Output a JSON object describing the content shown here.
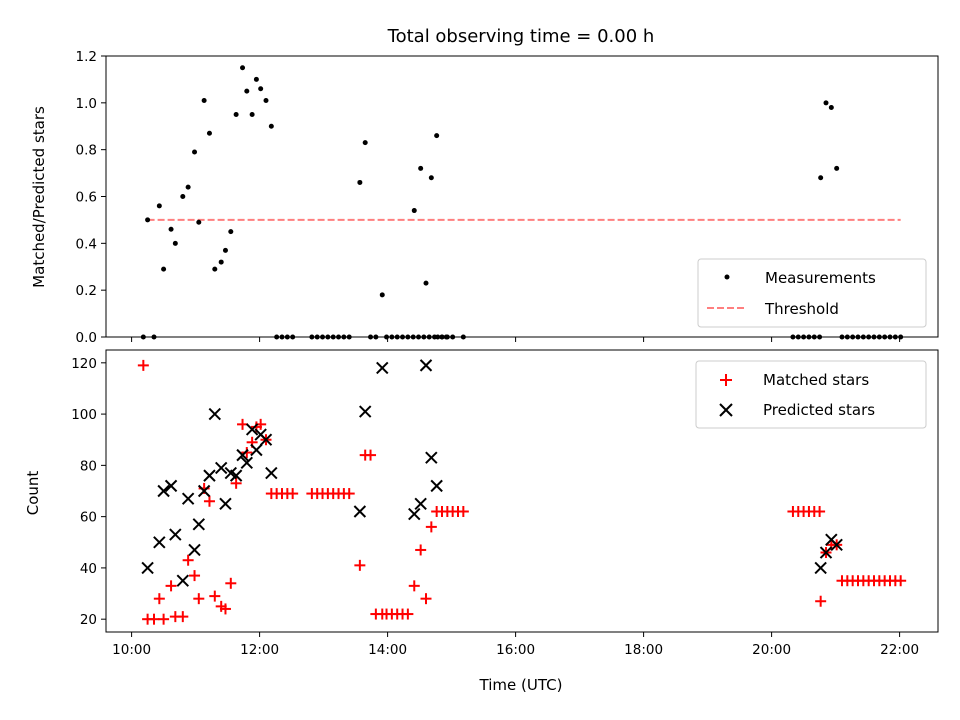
{
  "chart_data": [
    {
      "type": "scatter",
      "title": "Total observing time = 0.00 h",
      "xlabel": "",
      "ylabel": "Matched/Predicted stars",
      "xlim": [
        "09:36",
        "22:36"
      ],
      "ylim": [
        0,
        1.2
      ],
      "yticks": [
        "0.0",
        "0.2",
        "0.4",
        "0.6",
        "0.8",
        "1.0",
        "1.2"
      ],
      "legend_placement": "lower-right",
      "series": [
        {
          "name": "Measurements",
          "marker": "dot",
          "color": "#000000",
          "points": [
            [
              "10:11",
              0.0
            ],
            [
              "10:15",
              0.5
            ],
            [
              "10:21",
              0.0
            ],
            [
              "10:26",
              0.56
            ],
            [
              "10:30",
              0.29
            ],
            [
              "10:37",
              0.46
            ],
            [
              "10:41",
              0.4
            ],
            [
              "10:48",
              0.6
            ],
            [
              "10:53",
              0.64
            ],
            [
              "10:59",
              0.79
            ],
            [
              "11:03",
              0.49
            ],
            [
              "11:08",
              1.01
            ],
            [
              "11:13",
              0.87
            ],
            [
              "11:18",
              0.29
            ],
            [
              "11:24",
              0.32
            ],
            [
              "11:28",
              0.37
            ],
            [
              "11:33",
              0.45
            ],
            [
              "11:38",
              0.95
            ],
            [
              "11:44",
              1.15
            ],
            [
              "11:48",
              1.05
            ],
            [
              "11:53",
              0.95
            ],
            [
              "11:57",
              1.1
            ],
            [
              "12:01",
              1.06
            ],
            [
              "12:06",
              1.01
            ],
            [
              "12:11",
              0.9
            ],
            [
              "12:16",
              0.0
            ],
            [
              "12:21",
              0.0
            ],
            [
              "12:26",
              0.0
            ],
            [
              "12:31",
              0.0
            ],
            [
              "12:49",
              0.0
            ],
            [
              "12:54",
              0.0
            ],
            [
              "12:59",
              0.0
            ],
            [
              "13:04",
              0.0
            ],
            [
              "13:09",
              0.0
            ],
            [
              "13:14",
              0.0
            ],
            [
              "13:19",
              0.0
            ],
            [
              "13:24",
              0.0
            ],
            [
              "13:34",
              0.66
            ],
            [
              "13:39",
              0.83
            ],
            [
              "13:44",
              0.0
            ],
            [
              "13:49",
              0.0
            ],
            [
              "13:55",
              0.18
            ],
            [
              "13:59",
              0.0
            ],
            [
              "14:04",
              0.0
            ],
            [
              "14:09",
              0.0
            ],
            [
              "14:14",
              0.0
            ],
            [
              "14:19",
              0.0
            ],
            [
              "14:24",
              0.0
            ],
            [
              "14:29",
              0.0
            ],
            [
              "14:34",
              0.0
            ],
            [
              "14:39",
              0.0
            ],
            [
              "14:44",
              0.0
            ],
            [
              "14:47",
              0.0
            ],
            [
              "14:51",
              0.0
            ],
            [
              "14:55",
              0.0
            ],
            [
              "14:25",
              0.54
            ],
            [
              "14:31",
              0.72
            ],
            [
              "14:36",
              0.23
            ],
            [
              "14:41",
              0.68
            ],
            [
              "14:46",
              0.86
            ],
            [
              "14:51",
              0.0
            ],
            [
              "14:56",
              0.0
            ],
            [
              "15:01",
              0.0
            ],
            [
              "15:11",
              0.0
            ],
            [
              "20:20",
              0.0
            ],
            [
              "20:25",
              0.0
            ],
            [
              "20:30",
              0.0
            ],
            [
              "20:35",
              0.0
            ],
            [
              "20:40",
              0.0
            ],
            [
              "20:45",
              0.0
            ],
            [
              "20:46",
              0.68
            ],
            [
              "20:51",
              1.0
            ],
            [
              "20:56",
              0.98
            ],
            [
              "21:01",
              0.72
            ],
            [
              "21:06",
              0.0
            ],
            [
              "21:11",
              0.0
            ],
            [
              "21:16",
              0.0
            ],
            [
              "21:21",
              0.0
            ],
            [
              "21:26",
              0.0
            ],
            [
              "21:31",
              0.0
            ],
            [
              "21:36",
              0.0
            ],
            [
              "21:41",
              0.0
            ],
            [
              "21:46",
              0.0
            ],
            [
              "21:51",
              0.0
            ],
            [
              "21:56",
              0.0
            ],
            [
              "22:01",
              0.0
            ]
          ]
        },
        {
          "name": "Threshold",
          "line_style": "dashed",
          "color": "#ff7f7f",
          "points": [
            [
              "10:15",
              0.5
            ],
            [
              "22:01",
              0.5
            ]
          ]
        }
      ]
    },
    {
      "type": "scatter",
      "title": "",
      "xlabel": "Time (UTC)",
      "ylabel": "Count",
      "xlim": [
        "09:36",
        "22:36"
      ],
      "ylim": [
        15,
        125
      ],
      "yticks": [
        "20",
        "40",
        "60",
        "80",
        "100",
        "120"
      ],
      "xticks": [
        "10:00",
        "12:00",
        "14:00",
        "16:00",
        "18:00",
        "20:00",
        "22:00"
      ],
      "legend_placement": "upper-right",
      "series": [
        {
          "name": "Matched stars",
          "marker": "plus",
          "color": "#ff0000",
          "points": [
            [
              "10:11",
              119
            ],
            [
              "10:15",
              20
            ],
            [
              "10:21",
              20
            ],
            [
              "10:26",
              28
            ],
            [
              "10:30",
              20
            ],
            [
              "10:37",
              33
            ],
            [
              "10:41",
              21
            ],
            [
              "10:48",
              21
            ],
            [
              "10:53",
              43
            ],
            [
              "10:59",
              37
            ],
            [
              "11:03",
              28
            ],
            [
              "11:08",
              71
            ],
            [
              "11:13",
              66
            ],
            [
              "11:18",
              29
            ],
            [
              "11:24",
              25
            ],
            [
              "11:28",
              24
            ],
            [
              "11:33",
              34
            ],
            [
              "11:38",
              73
            ],
            [
              "11:44",
              96
            ],
            [
              "11:48",
              85
            ],
            [
              "11:53",
              89
            ],
            [
              "11:57",
              95
            ],
            [
              "12:01",
              96
            ],
            [
              "12:06",
              90
            ],
            [
              "12:11",
              69
            ],
            [
              "12:16",
              69
            ],
            [
              "12:21",
              69
            ],
            [
              "12:26",
              69
            ],
            [
              "12:31",
              69
            ],
            [
              "12:49",
              69
            ],
            [
              "12:54",
              69
            ],
            [
              "12:59",
              69
            ],
            [
              "13:04",
              69
            ],
            [
              "13:09",
              69
            ],
            [
              "13:14",
              69
            ],
            [
              "13:19",
              69
            ],
            [
              "13:24",
              69
            ],
            [
              "13:34",
              41
            ],
            [
              "13:39",
              84
            ],
            [
              "13:44",
              84
            ],
            [
              "13:49",
              22
            ],
            [
              "13:55",
              22
            ],
            [
              "13:59",
              22
            ],
            [
              "14:04",
              22
            ],
            [
              "14:09",
              22
            ],
            [
              "14:14",
              22
            ],
            [
              "14:19",
              22
            ],
            [
              "14:25",
              33
            ],
            [
              "14:31",
              47
            ],
            [
              "14:36",
              28
            ],
            [
              "14:41",
              56
            ],
            [
              "14:46",
              62
            ],
            [
              "14:51",
              62
            ],
            [
              "14:56",
              62
            ],
            [
              "15:01",
              62
            ],
            [
              "15:06",
              62
            ],
            [
              "15:11",
              62
            ],
            [
              "20:20",
              62
            ],
            [
              "20:25",
              62
            ],
            [
              "20:30",
              62
            ],
            [
              "20:35",
              62
            ],
            [
              "20:40",
              62
            ],
            [
              "20:45",
              62
            ],
            [
              "20:46",
              27
            ],
            [
              "20:51",
              46
            ],
            [
              "20:56",
              49
            ],
            [
              "21:01",
              49
            ],
            [
              "21:06",
              35
            ],
            [
              "21:11",
              35
            ],
            [
              "21:16",
              35
            ],
            [
              "21:21",
              35
            ],
            [
              "21:26",
              35
            ],
            [
              "21:31",
              35
            ],
            [
              "21:36",
              35
            ],
            [
              "21:41",
              35
            ],
            [
              "21:46",
              35
            ],
            [
              "21:51",
              35
            ],
            [
              "21:56",
              35
            ],
            [
              "22:01",
              35
            ]
          ]
        },
        {
          "name": "Predicted stars",
          "marker": "x",
          "color": "#000000",
          "points": [
            [
              "10:15",
              40
            ],
            [
              "10:26",
              50
            ],
            [
              "10:30",
              70
            ],
            [
              "10:37",
              72
            ],
            [
              "10:41",
              53
            ],
            [
              "10:48",
              35
            ],
            [
              "10:53",
              67
            ],
            [
              "10:59",
              47
            ],
            [
              "11:03",
              57
            ],
            [
              "11:08",
              70
            ],
            [
              "11:13",
              76
            ],
            [
              "11:18",
              100
            ],
            [
              "11:24",
              79
            ],
            [
              "11:28",
              65
            ],
            [
              "11:33",
              77
            ],
            [
              "11:38",
              76
            ],
            [
              "11:44",
              84
            ],
            [
              "11:48",
              81
            ],
            [
              "11:53",
              94
            ],
            [
              "11:57",
              86
            ],
            [
              "12:01",
              92
            ],
            [
              "12:06",
              90
            ],
            [
              "12:11",
              77
            ],
            [
              "13:34",
              62
            ],
            [
              "13:39",
              101
            ],
            [
              "13:55",
              118
            ],
            [
              "14:25",
              61
            ],
            [
              "14:31",
              65
            ],
            [
              "14:36",
              119
            ],
            [
              "14:41",
              83
            ],
            [
              "14:46",
              72
            ],
            [
              "20:46",
              40
            ],
            [
              "20:51",
              46
            ],
            [
              "20:56",
              51
            ],
            [
              "21:01",
              49
            ]
          ]
        }
      ]
    }
  ]
}
